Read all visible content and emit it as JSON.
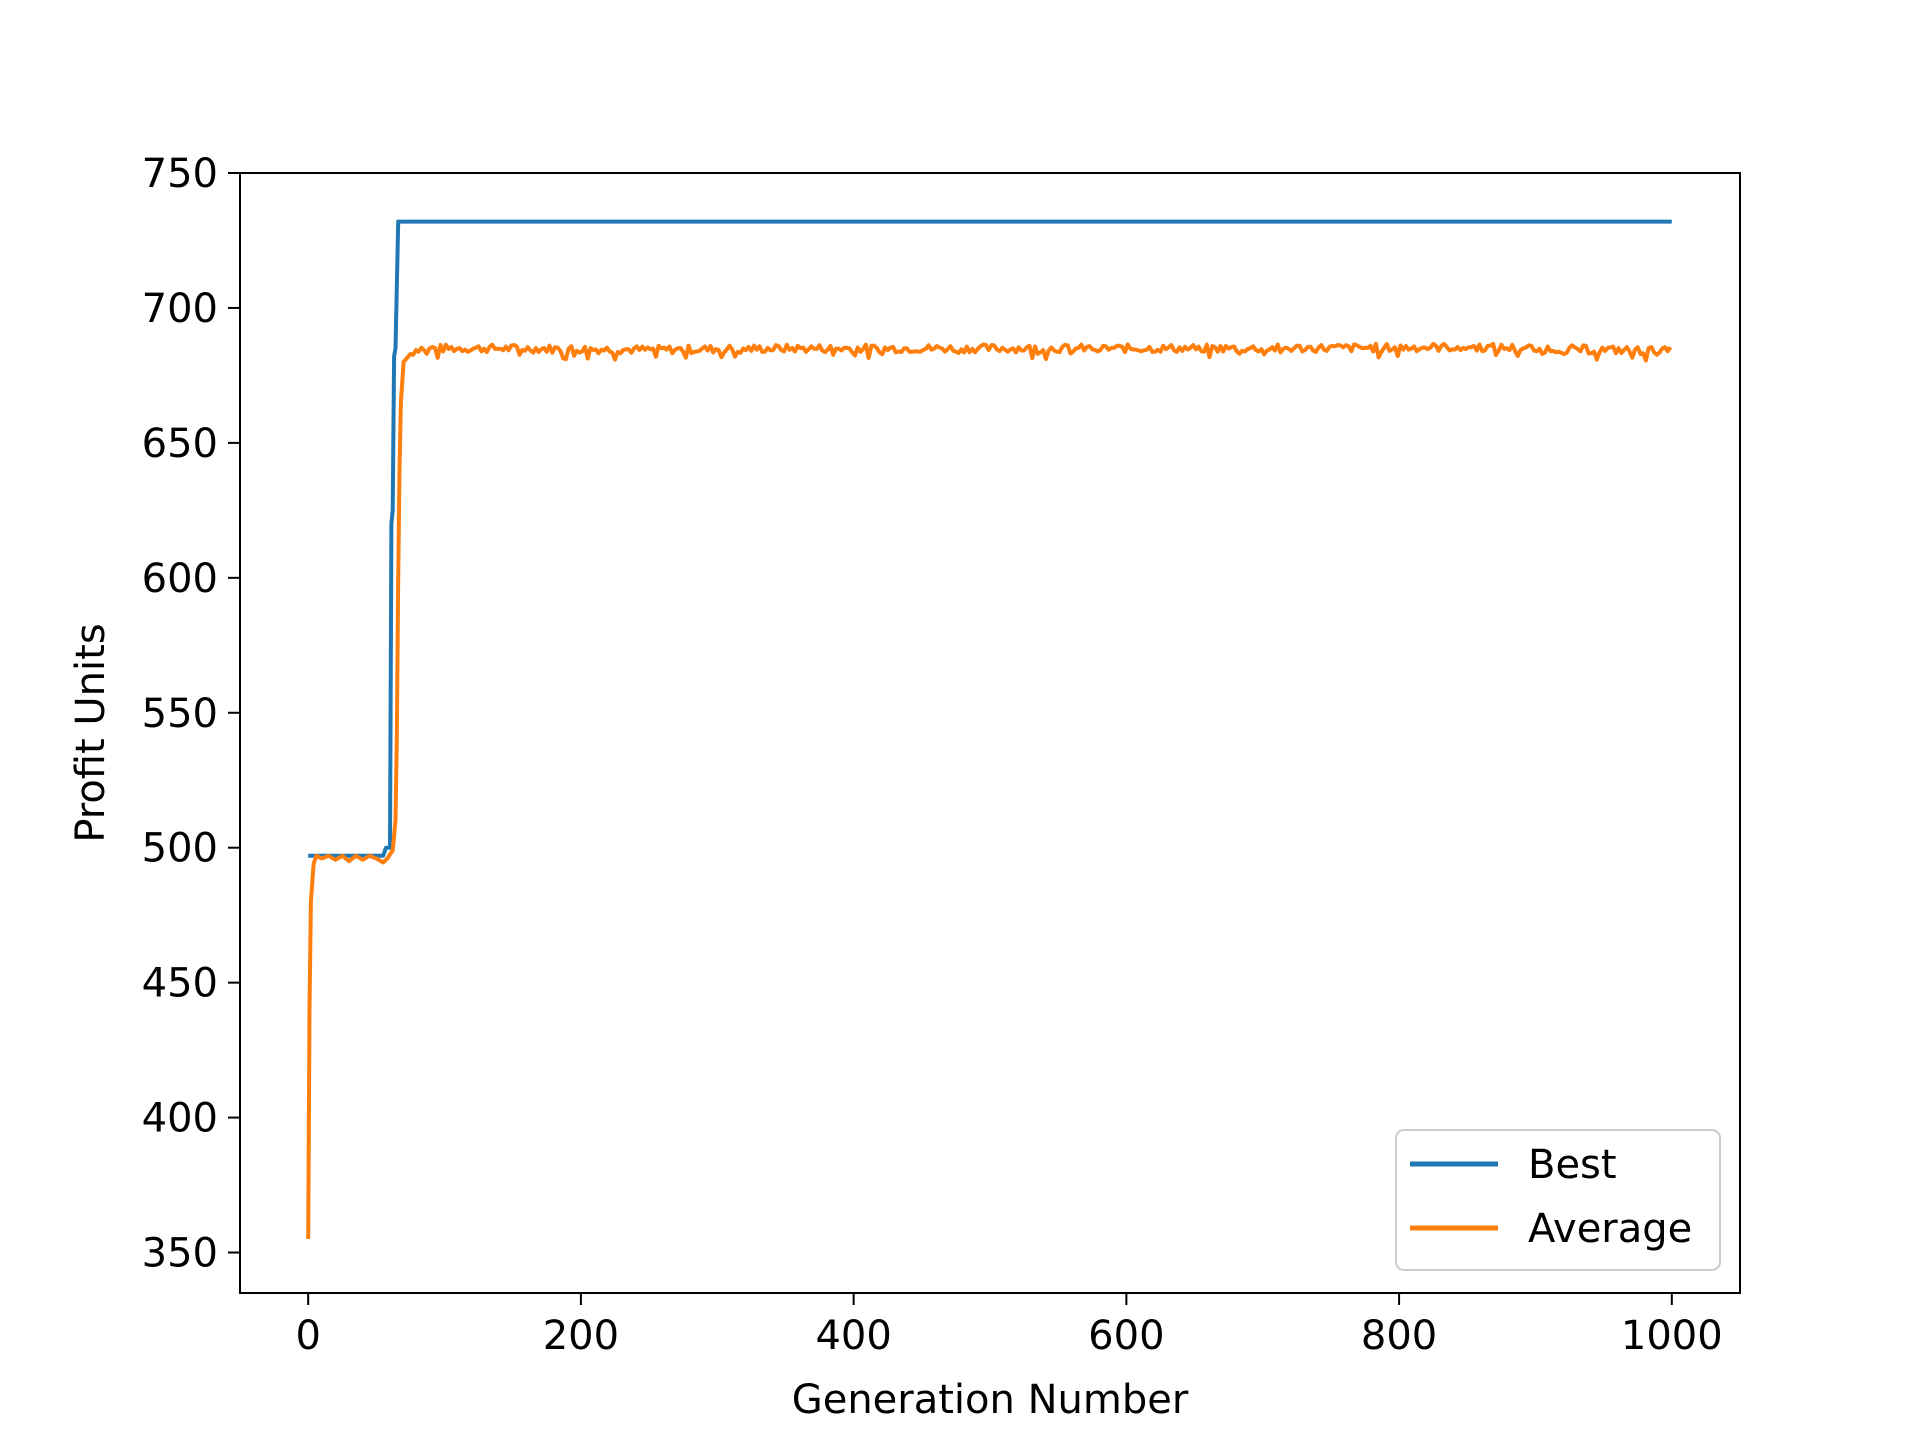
{
  "chart_data": {
    "type": "line",
    "title": "",
    "xlabel": "Generation Number",
    "ylabel": "Profit Units",
    "xlim": [
      -50,
      1050
    ],
    "ylim": [
      335,
      750
    ],
    "xticks": [
      0,
      200,
      400,
      600,
      800,
      1000
    ],
    "yticks": [
      350,
      400,
      450,
      500,
      550,
      600,
      650,
      700,
      750
    ],
    "grid": false,
    "legend_position": "lower right",
    "series": [
      {
        "name": "Best",
        "color": "#1f77b4",
        "points": [
          [
            0,
            497
          ],
          [
            55,
            497
          ],
          [
            57,
            500
          ],
          [
            60,
            500
          ],
          [
            61,
            620
          ],
          [
            62,
            625
          ],
          [
            63,
            682
          ],
          [
            64,
            685
          ],
          [
            66,
            732
          ],
          [
            1000,
            732
          ]
        ]
      },
      {
        "name": "Average",
        "color": "#ff7f0e",
        "points": [
          [
            0,
            355
          ],
          [
            1,
            440
          ],
          [
            2,
            480
          ],
          [
            4,
            494
          ],
          [
            6,
            497
          ],
          [
            10,
            496
          ],
          [
            15,
            497
          ],
          [
            20,
            495.5
          ],
          [
            25,
            497
          ],
          [
            30,
            495
          ],
          [
            35,
            497
          ],
          [
            40,
            495.5
          ],
          [
            45,
            497
          ],
          [
            50,
            496
          ],
          [
            55,
            494.5
          ],
          [
            58,
            496
          ],
          [
            62,
            499
          ],
          [
            64,
            510
          ],
          [
            65,
            540
          ],
          [
            66,
            600
          ],
          [
            67,
            640
          ],
          [
            68,
            665
          ],
          [
            70,
            680
          ],
          [
            75,
            683
          ],
          [
            80,
            685
          ],
          [
            100,
            685
          ],
          [
            150,
            685
          ],
          [
            250,
            684.5
          ],
          [
            350,
            685
          ],
          [
            500,
            685
          ],
          [
            700,
            685
          ],
          [
            850,
            685.5
          ],
          [
            1000,
            684
          ]
        ]
      }
    ],
    "average_plateau_noise": {
      "from_x": 75,
      "to_x": 1000,
      "base": 685,
      "amplitude": 2.5
    }
  }
}
